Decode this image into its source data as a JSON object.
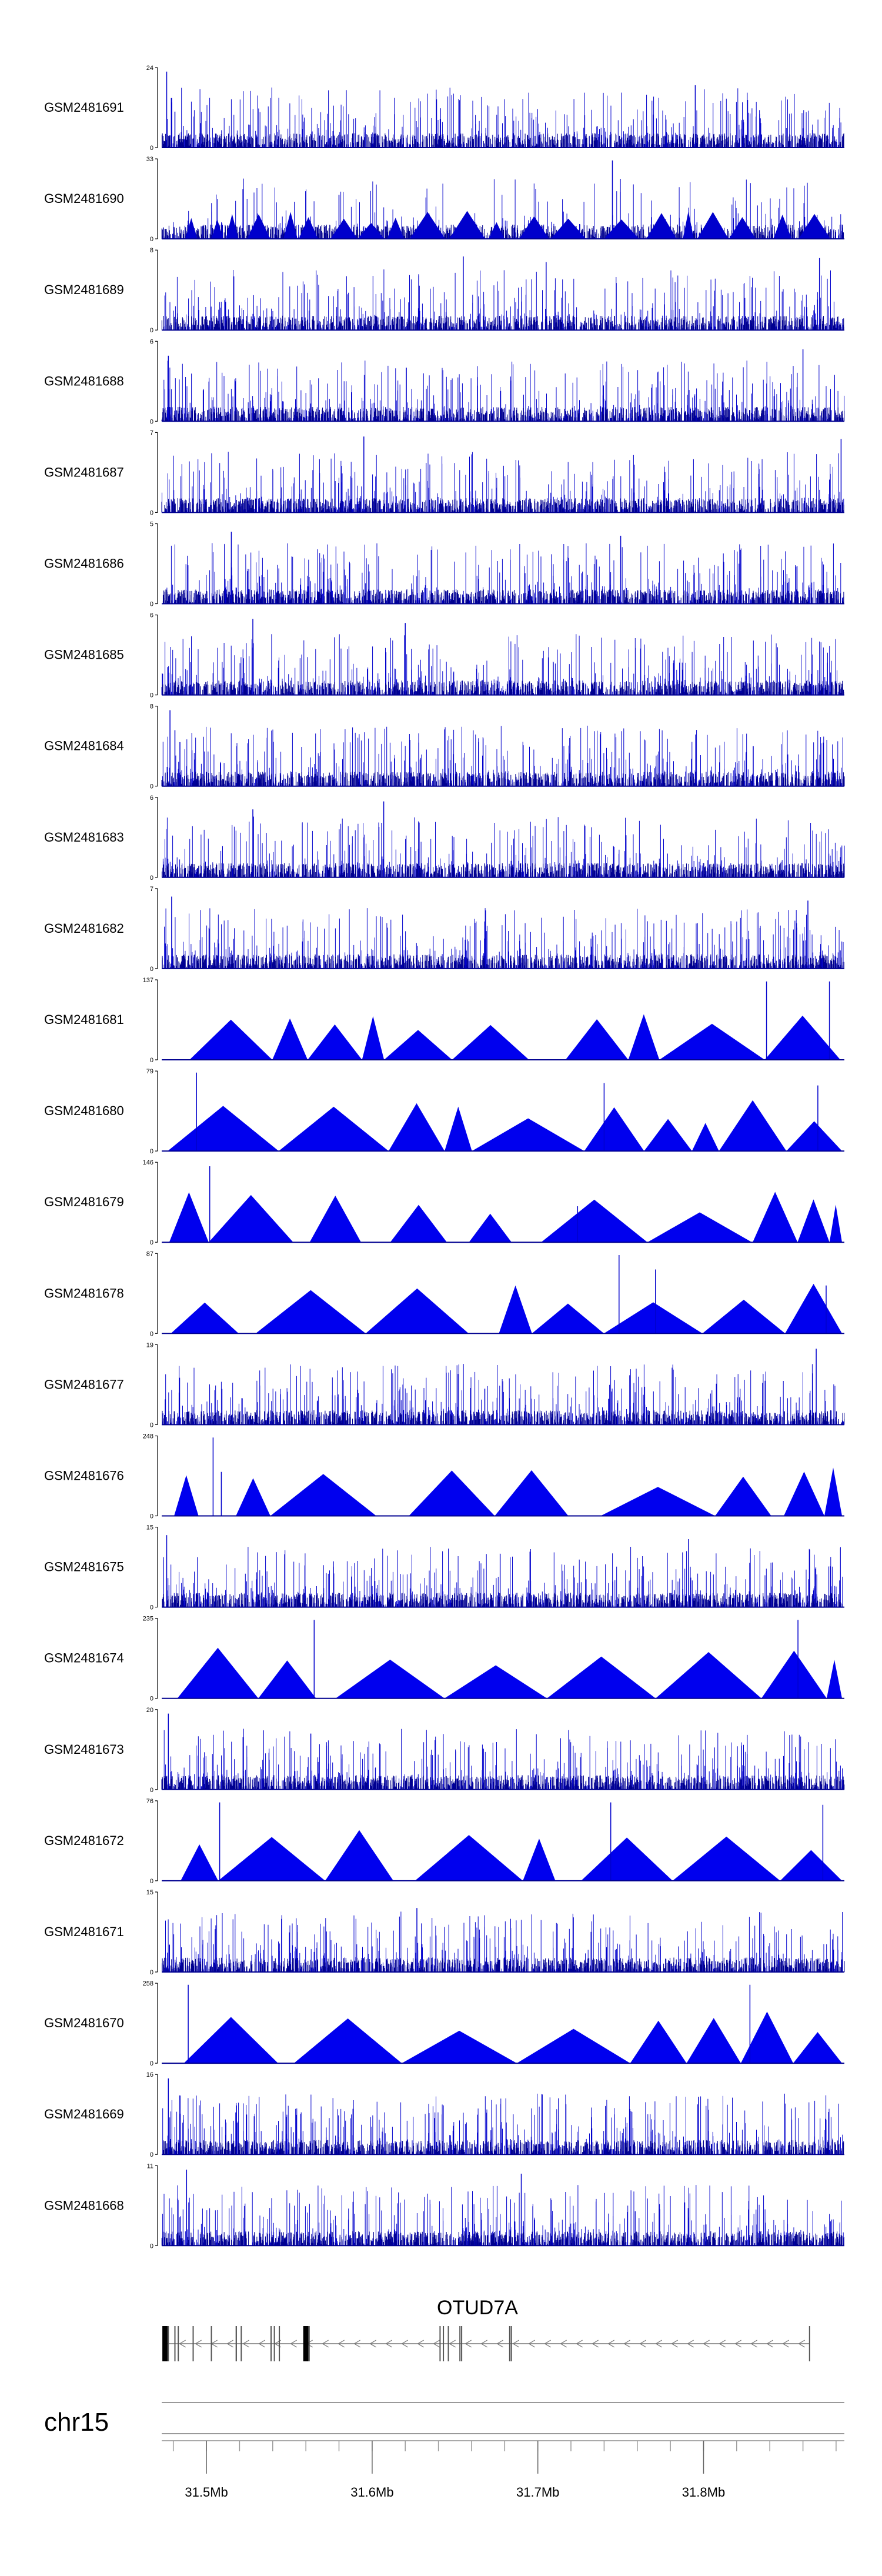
{
  "chart_data": {
    "type": "genome-tracks",
    "chromosome": "chr15",
    "gene": {
      "name": "OTUD7A",
      "strand": "-",
      "start_mb": 31.475,
      "end_mb": 31.864,
      "exons_mb": [
        31.475,
        31.477,
        31.481,
        31.483,
        31.492,
        31.503,
        31.518,
        31.518,
        31.521,
        31.539,
        31.541,
        31.544,
        31.56,
        31.562,
        31.641,
        31.643,
        31.646,
        31.653,
        31.654,
        31.683,
        31.684,
        31.864
      ]
    },
    "x_range_mb": [
      31.473,
      31.885
    ],
    "axis_ticks_mb": [
      31.5,
      31.6,
      31.7,
      31.8
    ],
    "axis_tick_labels": [
      "31.5Mb",
      "31.6Mb",
      "31.7Mb",
      "31.8Mb"
    ],
    "tracks": [
      {
        "name": "GSM2481691",
        "ymax": "24",
        "style": "dense",
        "peaks": [
          [
            31.476,
            0.95
          ],
          [
            31.479,
            0.62
          ],
          [
            31.481,
            0.45
          ],
          [
            31.795,
            0.78
          ]
        ]
      },
      {
        "name": "GSM2481690",
        "ymax": "33",
        "style": "mixed",
        "peaks": [
          [
            31.745,
            0.98
          ],
          [
            31.58,
            0.55
          ]
        ]
      },
      {
        "name": "GSM2481689",
        "ymax": "8",
        "style": "dense",
        "peaks": [
          [
            31.655,
            0.92
          ],
          [
            31.705,
            0.85
          ],
          [
            31.87,
            0.9
          ]
        ]
      },
      {
        "name": "GSM2481688",
        "ymax": "6",
        "style": "dense",
        "peaks": [
          [
            31.477,
            0.82
          ],
          [
            31.86,
            0.9
          ]
        ]
      },
      {
        "name": "GSM2481687",
        "ymax": "7",
        "style": "dense",
        "peaks": [
          [
            31.595,
            0.95
          ],
          [
            31.883,
            0.92
          ]
        ]
      },
      {
        "name": "GSM2481686",
        "ymax": "5",
        "style": "dense",
        "peaks": [
          [
            31.515,
            0.9
          ],
          [
            31.75,
            0.85
          ]
        ]
      },
      {
        "name": "GSM2481685",
        "ymax": "6",
        "style": "dense",
        "peaks": [
          [
            31.528,
            0.95
          ],
          [
            31.62,
            0.9
          ]
        ]
      },
      {
        "name": "GSM2481684",
        "ymax": "8",
        "style": "dense",
        "peaks": [
          [
            31.478,
            0.95
          ],
          [
            31.481,
            0.7
          ],
          [
            31.484,
            0.55
          ],
          [
            31.83,
            0.5
          ]
        ]
      },
      {
        "name": "GSM2481683",
        "ymax": "6",
        "style": "dense",
        "peaks": [
          [
            31.528,
            0.85
          ],
          [
            31.607,
            0.95
          ]
        ]
      },
      {
        "name": "GSM2481682",
        "ymax": "7",
        "style": "dense",
        "peaks": [
          [
            31.479,
            0.9
          ],
          [
            31.863,
            0.85
          ]
        ]
      },
      {
        "name": "GSM2481681",
        "ymax": "137",
        "style": "triangles",
        "peaks": [
          [
            31.838,
            0.98
          ],
          [
            31.876,
            0.98
          ]
        ]
      },
      {
        "name": "GSM2481680",
        "ymax": "79",
        "style": "triangles",
        "peaks": [
          [
            31.494,
            0.98
          ],
          [
            31.74,
            0.85
          ],
          [
            31.869,
            0.82
          ]
        ]
      },
      {
        "name": "GSM2481679",
        "ymax": "146",
        "style": "triangles",
        "peaks": [
          [
            31.502,
            0.95
          ],
          [
            31.724,
            0.45
          ]
        ]
      },
      {
        "name": "GSM2481678",
        "ymax": "87",
        "style": "triangles",
        "peaks": [
          [
            31.749,
            0.98
          ],
          [
            31.771,
            0.8
          ],
          [
            31.874,
            0.6
          ]
        ]
      },
      {
        "name": "GSM2481677",
        "ymax": "19",
        "style": "dense",
        "peaks": [
          [
            31.567,
            0.3
          ],
          [
            31.668,
            0.45
          ],
          [
            31.868,
            0.95
          ]
        ]
      },
      {
        "name": "GSM2481676",
        "ymax": "248",
        "style": "triangles",
        "peaks": [
          [
            31.504,
            0.98
          ],
          [
            31.509,
            0.55
          ]
        ]
      },
      {
        "name": "GSM2481675",
        "ymax": "15",
        "style": "dense",
        "peaks": [
          [
            31.476,
            0.9
          ],
          [
            31.791,
            0.85
          ]
        ]
      },
      {
        "name": "GSM2481674",
        "ymax": "235",
        "style": "triangles",
        "peaks": [
          [
            31.565,
            0.98
          ],
          [
            31.857,
            0.98
          ]
        ]
      },
      {
        "name": "GSM2481673",
        "ymax": "20",
        "style": "dense",
        "peaks": [
          [
            31.477,
            0.95
          ],
          [
            31.563,
            0.7
          ]
        ]
      },
      {
        "name": "GSM2481672",
        "ymax": "76",
        "style": "triangles",
        "peaks": [
          [
            31.508,
            0.98
          ],
          [
            31.744,
            0.98
          ],
          [
            31.872,
            0.95
          ]
        ]
      },
      {
        "name": "GSM2481671",
        "ymax": "15",
        "style": "dense",
        "peaks": [
          [
            31.627,
            0.8
          ],
          [
            31.884,
            0.75
          ]
        ]
      },
      {
        "name": "GSM2481670",
        "ymax": "258",
        "style": "triangles",
        "peaks": [
          [
            31.489,
            0.98
          ],
          [
            31.828,
            0.98
          ]
        ]
      },
      {
        "name": "GSM2481669",
        "ymax": "16",
        "style": "dense",
        "peaks": [
          [
            31.477,
            0.95
          ],
          [
            31.797,
            0.72
          ]
        ]
      },
      {
        "name": "GSM2481668",
        "ymax": "11",
        "style": "dense",
        "peaks": [
          [
            31.488,
            0.95
          ],
          [
            31.69,
            0.9
          ]
        ]
      }
    ]
  }
}
